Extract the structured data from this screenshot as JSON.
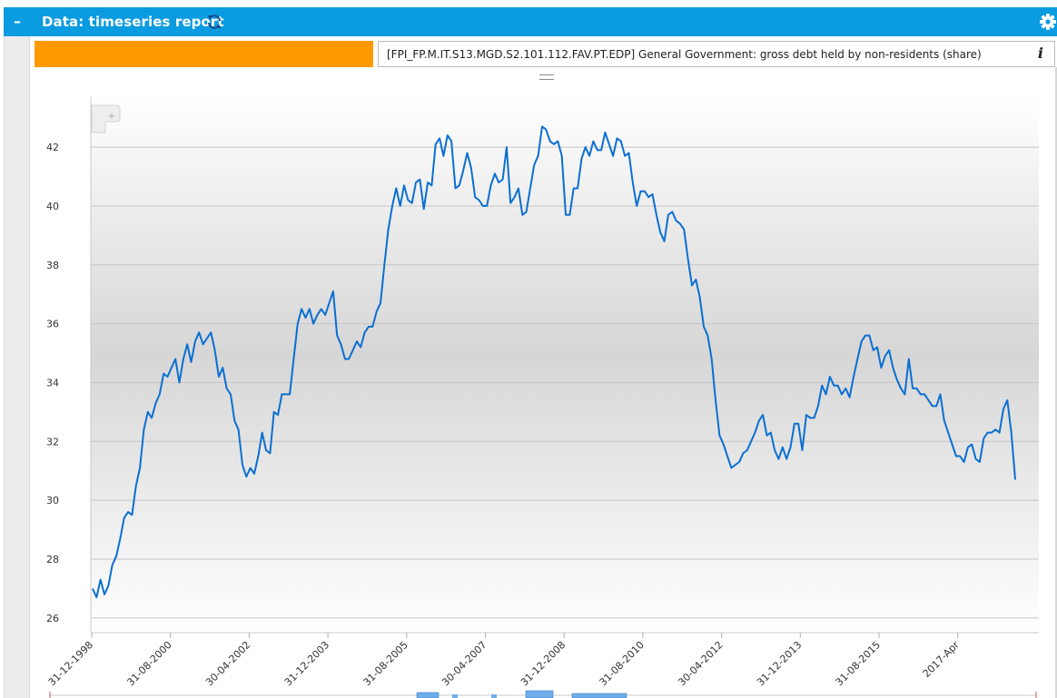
{
  "window": {
    "title": "Data: timeseries report",
    "collapse_symbol": "–"
  },
  "colors": {
    "header": "#0a9be0",
    "series_swatch": "#ff9900",
    "line": "#0a6fd1"
  },
  "icons": [
    "minus-icon",
    "refresh-icon",
    "gear-icon",
    "info-icon",
    "zoom-reset-icon"
  ],
  "series": {
    "label": "[FPI_FP.M.IT.S13.MGD.S2.101.112.FAV.PT.EDP] General Government: gross debt held by non-residents (share)",
    "info_symbol": "i"
  },
  "chart_data": {
    "type": "line",
    "title": "",
    "xlabel": "",
    "ylabel": "",
    "ylim": [
      25.5,
      43.7
    ],
    "yticks": [
      26,
      28,
      30,
      32,
      34,
      36,
      38,
      40,
      42
    ],
    "xticks": [
      "31-12-1998",
      "31-08-2000",
      "30-04-2002",
      "31-12-2003",
      "31-08-2005",
      "30-04-2007",
      "31-12-2008",
      "31-08-2010",
      "30-04-2012",
      "31-12-2013",
      "31-08-2015",
      "2017-Apr"
    ],
    "grid": true,
    "series": [
      {
        "values": [
          27.0,
          26.7,
          27.3,
          26.8,
          27.1,
          27.8,
          28.1,
          28.7,
          29.4,
          29.6,
          29.5,
          30.5,
          31.1,
          32.4,
          33.0,
          32.8,
          33.3,
          33.6,
          34.3,
          34.2,
          34.5,
          34.8,
          34.0,
          34.8,
          35.3,
          34.7,
          35.4,
          35.7,
          35.3,
          35.5,
          35.7,
          35.1,
          34.2,
          34.5,
          33.8,
          33.6,
          32.7,
          32.4,
          31.2,
          30.8,
          31.1,
          30.9,
          31.5,
          32.3,
          31.7,
          31.6,
          33.0,
          32.9,
          33.6,
          33.6,
          33.6,
          34.8,
          36.0,
          36.5,
          36.2,
          36.5,
          36.0,
          36.3,
          36.5,
          36.3,
          36.7,
          37.1,
          35.6,
          35.3,
          34.8,
          34.8,
          35.1,
          35.4,
          35.2,
          35.7,
          35.9,
          35.9,
          36.4,
          36.7,
          38.0,
          39.2,
          40.0,
          40.6,
          40.0,
          40.7,
          40.2,
          40.1,
          40.8,
          40.9,
          39.9,
          40.8,
          40.7,
          42.1,
          42.3,
          41.7,
          42.4,
          42.2,
          40.6,
          40.7,
          41.2,
          41.8,
          41.3,
          40.3,
          40.2,
          40.0,
          40.0,
          40.7,
          41.1,
          40.8,
          40.9,
          42.0,
          40.1,
          40.3,
          40.6,
          39.7,
          39.8,
          40.6,
          41.4,
          41.7,
          42.7,
          42.6,
          42.2,
          42.1,
          42.2,
          41.7,
          39.7,
          39.7,
          40.6,
          40.6,
          41.6,
          42.0,
          41.7,
          42.2,
          41.9,
          41.9,
          42.5,
          42.1,
          41.7,
          42.3,
          42.2,
          41.7,
          41.8,
          40.8,
          40.0,
          40.5,
          40.5,
          40.3,
          40.4,
          39.7,
          39.1,
          38.8,
          39.7,
          39.8,
          39.5,
          39.4,
          39.2,
          38.2,
          37.3,
          37.5,
          36.9,
          35.9,
          35.6,
          34.8,
          33.4,
          32.2,
          31.9,
          31.5,
          31.1,
          31.2,
          31.3,
          31.6,
          31.7,
          32.0,
          32.3,
          32.7,
          32.9,
          32.2,
          32.3,
          31.7,
          31.4,
          31.8,
          31.4,
          31.8,
          32.6,
          32.6,
          31.7,
          32.9,
          32.8,
          32.8,
          33.2,
          33.9,
          33.6,
          34.2,
          33.9,
          33.9,
          33.6,
          33.8,
          33.5,
          34.2,
          34.8,
          35.4,
          35.6,
          35.6,
          35.1,
          35.2,
          34.5,
          34.9,
          35.1,
          34.5,
          34.1,
          33.8,
          33.6,
          34.8,
          33.8,
          33.8,
          33.6,
          33.6,
          33.4,
          33.2,
          33.2,
          33.6,
          32.7,
          32.3,
          31.9,
          31.5,
          31.5,
          31.3,
          31.8,
          31.9,
          31.4,
          31.3,
          32.1,
          32.3,
          32.3,
          32.4,
          32.3,
          33.1,
          33.4,
          32.3,
          30.7
        ]
      }
    ]
  }
}
